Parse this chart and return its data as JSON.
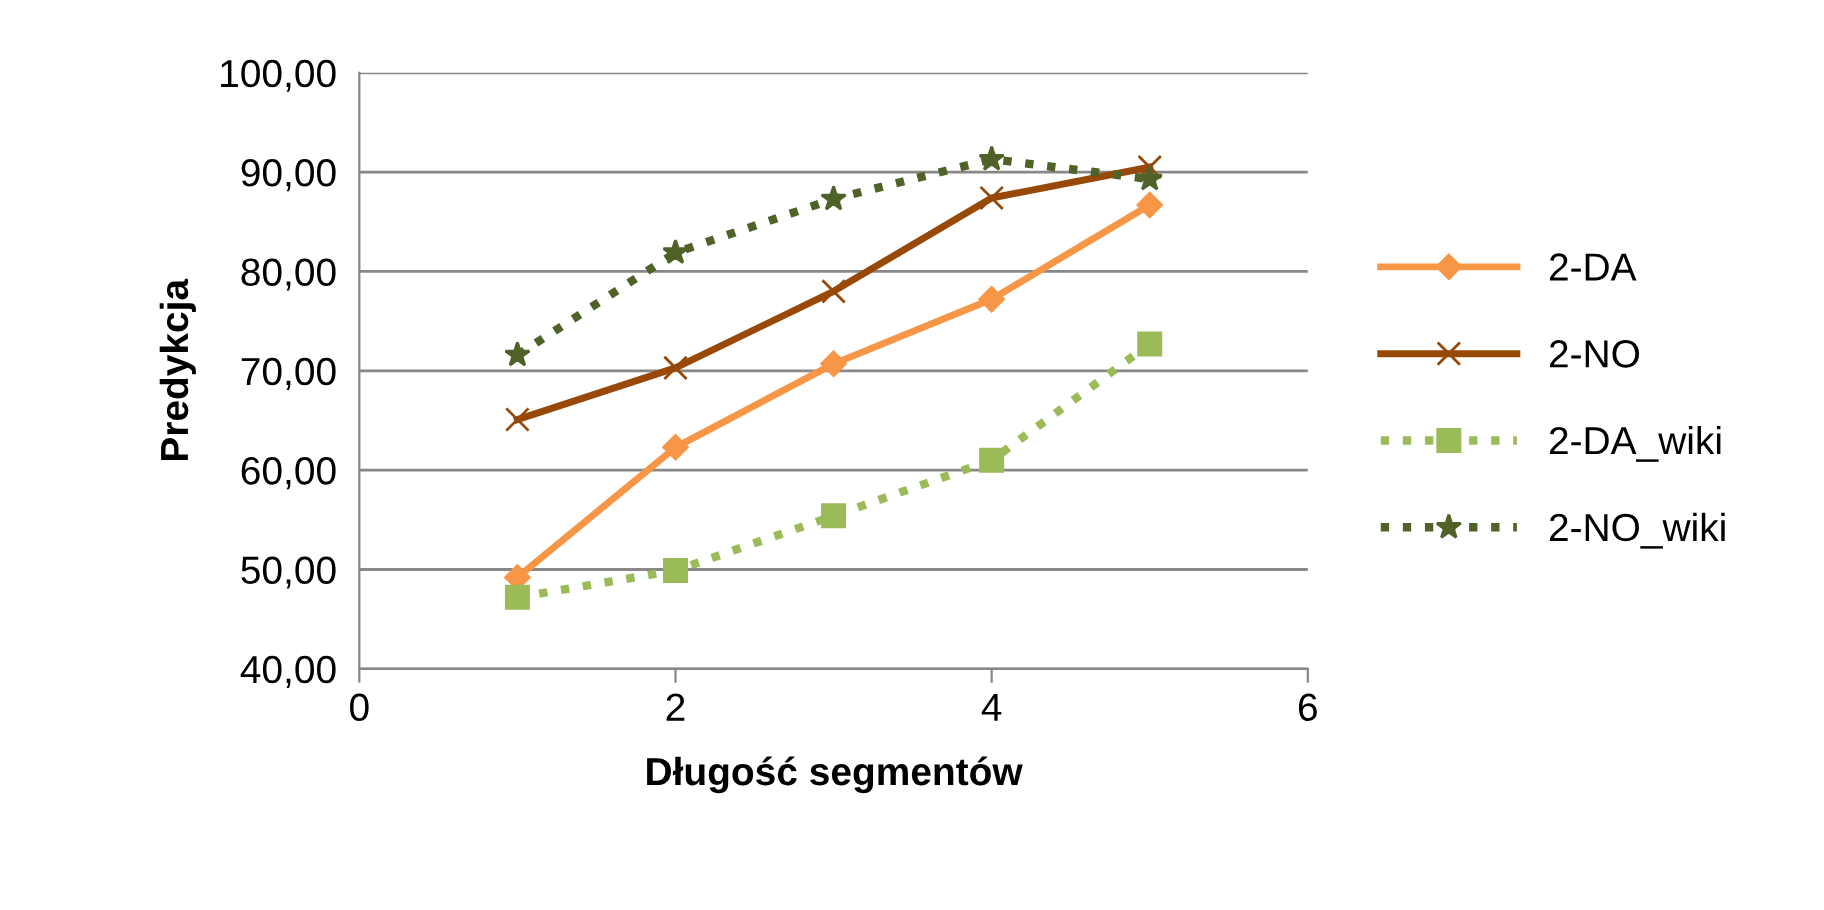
{
  "chart_data": {
    "type": "line",
    "xlabel": "Długość segmentów",
    "ylabel": "Predykcja",
    "x": [
      1,
      2,
      3,
      4,
      5
    ],
    "series": [
      {
        "name": "2-DA",
        "color": "#f79646",
        "values": [
          49.2,
          62.3,
          70.7,
          77.2,
          86.7
        ],
        "marker": "diamond",
        "line_style": "solid"
      },
      {
        "name": "2-NO",
        "color": "#984807",
        "values": [
          65.1,
          70.3,
          78.0,
          87.4,
          90.5
        ],
        "marker": "cross",
        "line_style": "solid"
      },
      {
        "name": "2-DA_wiki",
        "color": "#9bbb59",
        "values": [
          47.2,
          49.9,
          55.4,
          61.0,
          72.7
        ],
        "marker": "square",
        "line_style": "dotted"
      },
      {
        "name": "2-NO_wiki",
        "color": "#4f6228",
        "values": [
          71.6,
          81.9,
          87.3,
          91.3,
          89.3
        ],
        "marker": "star",
        "line_style": "dotted"
      }
    ],
    "xlim": [
      0,
      6
    ],
    "xticks": [
      0,
      2,
      4,
      6
    ],
    "ylim": [
      40,
      100
    ],
    "yticks": [
      {
        "value": 40,
        "label": "40,00"
      },
      {
        "value": 50,
        "label": "50,00"
      },
      {
        "value": 60,
        "label": "60,00"
      },
      {
        "value": 70,
        "label": "70,00"
      },
      {
        "value": 80,
        "label": "80,00"
      },
      {
        "value": 90,
        "label": "90,00"
      },
      {
        "value": 100,
        "label": "100,00"
      }
    ],
    "grid": "y",
    "legend": "right"
  }
}
